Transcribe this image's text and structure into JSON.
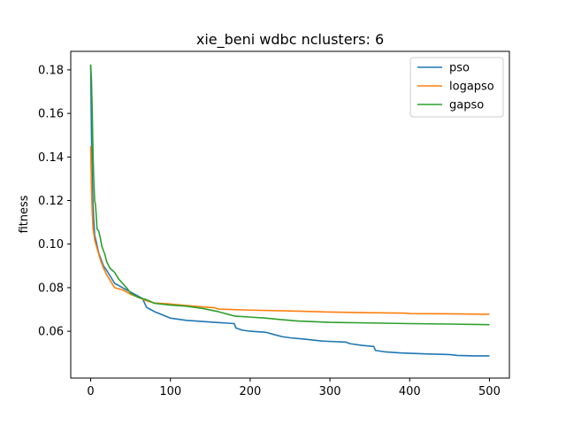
{
  "chart_data": {
    "type": "line",
    "title": "xie_beni wdbc nclusters: 6",
    "xlabel": "",
    "ylabel": "fitness",
    "xlim": [
      -25,
      525
    ],
    "ylim": [
      0.0385,
      0.1885
    ],
    "xticks": [
      0,
      100,
      200,
      300,
      400,
      500
    ],
    "yticks": [
      0.06,
      0.08,
      0.1,
      0.12,
      0.14,
      0.16,
      0.18
    ],
    "ytick_labels": [
      "0.06",
      "0.08",
      "0.10",
      "0.12",
      "0.14",
      "0.16",
      "0.18"
    ],
    "grid": false,
    "legend_position": "top-right",
    "series": [
      {
        "name": "pso",
        "color": "#1f77b4",
        "points": [
          [
            0,
            0.182
          ],
          [
            1,
            0.15
          ],
          [
            2,
            0.128
          ],
          [
            3,
            0.117
          ],
          [
            4,
            0.11
          ],
          [
            5,
            0.104
          ],
          [
            7,
            0.101
          ],
          [
            10,
            0.096
          ],
          [
            13,
            0.093
          ],
          [
            16,
            0.09
          ],
          [
            20,
            0.088
          ],
          [
            25,
            0.085
          ],
          [
            30,
            0.082
          ],
          [
            35,
            0.081
          ],
          [
            40,
            0.08
          ],
          [
            45,
            0.079
          ],
          [
            50,
            0.078
          ],
          [
            55,
            0.077
          ],
          [
            60,
            0.076
          ],
          [
            65,
            0.075
          ],
          [
            70,
            0.071
          ],
          [
            75,
            0.07
          ],
          [
            80,
            0.069
          ],
          [
            90,
            0.0675
          ],
          [
            100,
            0.066
          ],
          [
            110,
            0.0655
          ],
          [
            120,
            0.065
          ],
          [
            140,
            0.0645
          ],
          [
            160,
            0.064
          ],
          [
            180,
            0.0635
          ],
          [
            182,
            0.0615
          ],
          [
            190,
            0.0605
          ],
          [
            200,
            0.06
          ],
          [
            220,
            0.0595
          ],
          [
            230,
            0.0585
          ],
          [
            240,
            0.0575
          ],
          [
            250,
            0.057
          ],
          [
            270,
            0.0563
          ],
          [
            290,
            0.0555
          ],
          [
            320,
            0.055
          ],
          [
            325,
            0.0543
          ],
          [
            340,
            0.0535
          ],
          [
            355,
            0.053
          ],
          [
            357,
            0.0512
          ],
          [
            370,
            0.0505
          ],
          [
            390,
            0.05
          ],
          [
            420,
            0.0496
          ],
          [
            450,
            0.0493
          ],
          [
            460,
            0.0489
          ],
          [
            480,
            0.0487
          ],
          [
            500,
            0.0487
          ]
        ]
      },
      {
        "name": "logapso",
        "color": "#ff7f0e",
        "points": [
          [
            0,
            0.145
          ],
          [
            1,
            0.125
          ],
          [
            2,
            0.114
          ],
          [
            3,
            0.107
          ],
          [
            5,
            0.102
          ],
          [
            8,
            0.098
          ],
          [
            12,
            0.093
          ],
          [
            16,
            0.089
          ],
          [
            20,
            0.086
          ],
          [
            25,
            0.083
          ],
          [
            30,
            0.08
          ],
          [
            35,
            0.0795
          ],
          [
            40,
            0.079
          ],
          [
            50,
            0.077
          ],
          [
            60,
            0.0755
          ],
          [
            70,
            0.074
          ],
          [
            80,
            0.073
          ],
          [
            100,
            0.0725
          ],
          [
            120,
            0.0718
          ],
          [
            140,
            0.0712
          ],
          [
            155,
            0.0708
          ],
          [
            160,
            0.0702
          ],
          [
            200,
            0.0697
          ],
          [
            250,
            0.0693
          ],
          [
            300,
            0.0688
          ],
          [
            350,
            0.0685
          ],
          [
            395,
            0.0683
          ],
          [
            400,
            0.0681
          ],
          [
            450,
            0.068
          ],
          [
            500,
            0.0678
          ]
        ]
      },
      {
        "name": "gapso",
        "color": "#2ca02c",
        "points": [
          [
            0,
            0.1825
          ],
          [
            1,
            0.175
          ],
          [
            2,
            0.16
          ],
          [
            3,
            0.14
          ],
          [
            4,
            0.128
          ],
          [
            5,
            0.12
          ],
          [
            6,
            0.118
          ],
          [
            7,
            0.113
          ],
          [
            8,
            0.107
          ],
          [
            10,
            0.106
          ],
          [
            12,
            0.103
          ],
          [
            14,
            0.099
          ],
          [
            16,
            0.097
          ],
          [
            18,
            0.095
          ],
          [
            20,
            0.092
          ],
          [
            24,
            0.089
          ],
          [
            30,
            0.087
          ],
          [
            35,
            0.084
          ],
          [
            40,
            0.082
          ],
          [
            45,
            0.08
          ],
          [
            50,
            0.0775
          ],
          [
            55,
            0.0765
          ],
          [
            60,
            0.0755
          ],
          [
            70,
            0.0745
          ],
          [
            80,
            0.0728
          ],
          [
            100,
            0.072
          ],
          [
            120,
            0.0715
          ],
          [
            140,
            0.0705
          ],
          [
            160,
            0.069
          ],
          [
            170,
            0.068
          ],
          [
            180,
            0.067
          ],
          [
            200,
            0.0665
          ],
          [
            220,
            0.066
          ],
          [
            240,
            0.0653
          ],
          [
            260,
            0.0647
          ],
          [
            300,
            0.0641
          ],
          [
            350,
            0.0638
          ],
          [
            400,
            0.0635
          ],
          [
            450,
            0.0633
          ],
          [
            500,
            0.063
          ]
        ]
      }
    ]
  }
}
